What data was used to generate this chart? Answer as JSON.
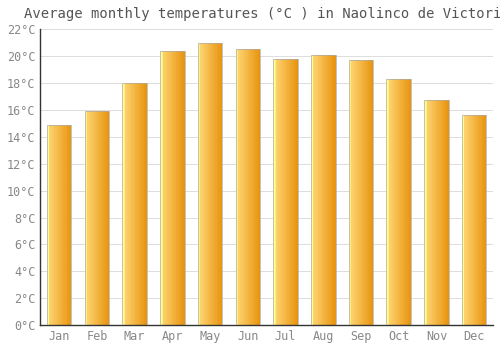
{
  "title": "Average monthly temperatures (°C ) in Naolinco de Victoria",
  "months": [
    "Jan",
    "Feb",
    "Mar",
    "Apr",
    "May",
    "Jun",
    "Jul",
    "Aug",
    "Sep",
    "Oct",
    "Nov",
    "Dec"
  ],
  "values": [
    14.9,
    15.9,
    18.0,
    20.4,
    21.0,
    20.5,
    19.8,
    20.1,
    19.7,
    18.3,
    16.7,
    15.6
  ],
  "bar_color_dark": "#E8900A",
  "bar_color_mid": "#F5A623",
  "bar_color_light": "#FFD878",
  "bar_edge_color": "#B8860B",
  "ylim": [
    0,
    22
  ],
  "ytick_step": 2,
  "background_color": "#FFFFFF",
  "grid_color": "#DDDDDD",
  "title_fontsize": 10,
  "tick_fontsize": 8.5,
  "font_family": "monospace",
  "tick_color": "#888888",
  "title_color": "#555555",
  "bar_width": 0.65
}
